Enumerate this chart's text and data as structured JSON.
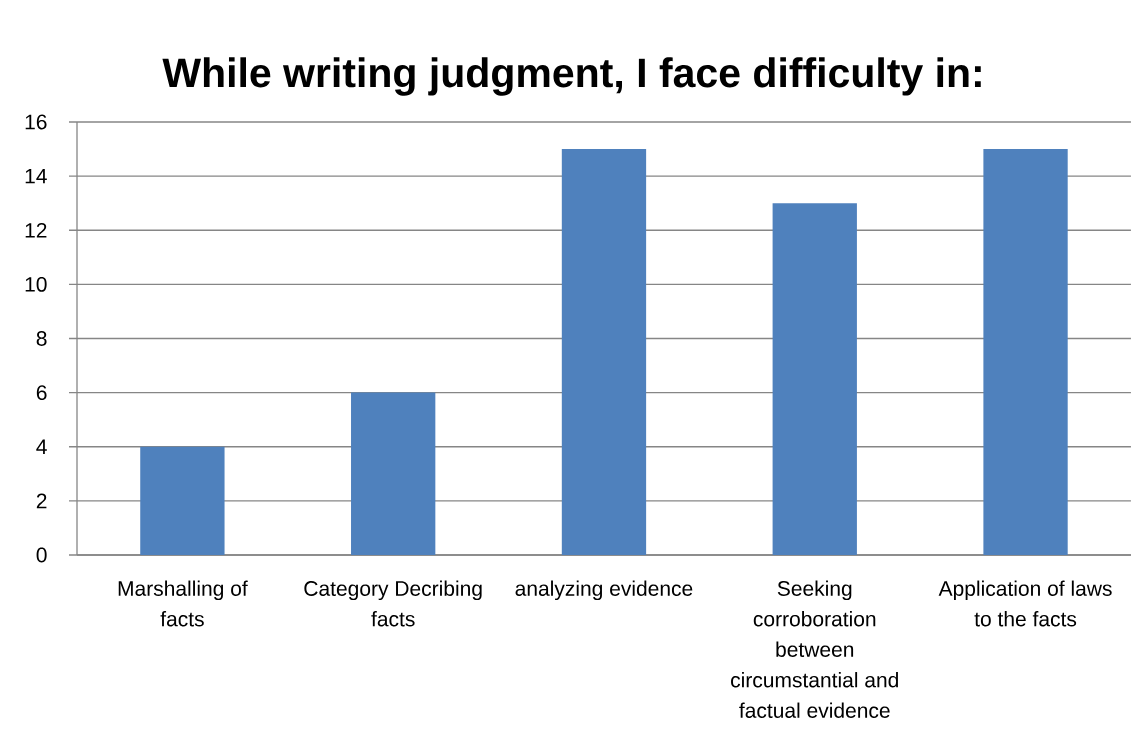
{
  "chart_data": {
    "type": "bar",
    "title": "While writing judgment, I face difficulty in:",
    "categories": [
      "Marshalling of facts",
      "Category Decribing facts",
      "analyzing evidence",
      "Seeking corroboration between circumstantial and factual evidence",
      "Application of laws to the facts"
    ],
    "values": [
      4,
      6,
      15,
      13,
      15
    ],
    "color": "#4f81bd",
    "ylim": [
      0,
      16
    ],
    "yticks": [
      0,
      2,
      4,
      6,
      8,
      10,
      12,
      14,
      16
    ],
    "grid": "y"
  }
}
